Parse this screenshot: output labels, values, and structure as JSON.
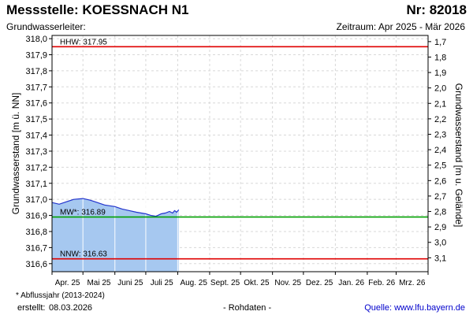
{
  "header": {
    "title": "Messstelle: KOESSNACH N1",
    "number": "Nr: 82018",
    "subtitle": "Grundwasserleiter:",
    "period": "Zeitraum: Apr 2025 - Mär 2026"
  },
  "footer": {
    "footnote": "* Abflussjahr (2013-2024)",
    "created_label": "erstellt:",
    "created_date": "08.03.2026",
    "rawdata": "- Rohdaten -",
    "source": "Quelle: www.lfu.bayern.de"
  },
  "colors": {
    "hhw": "#e00000",
    "nnw": "#e00000",
    "mw": "#00a000",
    "series_line": "#2233cc",
    "series_fill": "#a6c8f0",
    "grid": "#d8d8d8"
  },
  "chart_data": {
    "type": "area",
    "ylabel": "Grundwasserstand [m ü. NN]",
    "y2label": "Grundwasserstand [m u. Gelände]",
    "ylim": [
      316.55,
      318.02
    ],
    "y2lim": [
      3.19,
      1.66
    ],
    "grid": true,
    "yticks": [
      "316,6",
      "316,7",
      "316,8",
      "316,9",
      "317,0",
      "317,1",
      "317,2",
      "317,3",
      "317,4",
      "317,5",
      "317,6",
      "317,7",
      "317,8",
      "317,9",
      "318,0"
    ],
    "y2ticks": [
      "1,7",
      "1,8",
      "1,9",
      "2,0",
      "2,1",
      "2,2",
      "2,3",
      "2,4",
      "2,5",
      "2,6",
      "2,7",
      "2,8",
      "2,9",
      "3,0",
      "3,1"
    ],
    "xtick_labels": [
      "Apr. 25",
      "Mai 25",
      "Juni 25",
      "Juli 25",
      "Aug. 25",
      "Sept. 25",
      "Okt. 25",
      "Nov. 25",
      "Dez. 25",
      "Jan. 26",
      "Feb. 26",
      "Mrz. 26"
    ],
    "x_start": "2025-04-01",
    "x_end": "2026-03-31",
    "reference_lines": [
      {
        "label": "HHW: 317.95",
        "value": 317.95,
        "kind": "hhw"
      },
      {
        "label": "MW*: 316.89",
        "value": 316.89,
        "kind": "mw"
      },
      {
        "label": "NNW: 316.63",
        "value": 316.63,
        "kind": "nnw"
      }
    ],
    "series": [
      {
        "x": [
          "2025-04-01",
          "2025-04-08",
          "2025-04-15",
          "2025-04-22",
          "2025-05-01",
          "2025-05-08",
          "2025-05-15",
          "2025-05-22",
          "2025-06-01",
          "2025-06-08",
          "2025-06-15",
          "2025-06-22",
          "2025-07-01",
          "2025-07-06",
          "2025-07-11",
          "2025-07-16",
          "2025-07-20",
          "2025-07-24",
          "2025-07-27",
          "2025-07-29",
          "2025-07-31",
          "2025-08-02"
        ],
        "y": [
          316.98,
          316.97,
          316.985,
          317.0,
          317.005,
          316.995,
          316.98,
          316.965,
          316.955,
          316.94,
          316.93,
          316.92,
          316.91,
          316.9,
          316.895,
          316.91,
          316.915,
          316.925,
          316.915,
          316.93,
          316.92,
          316.935
        ]
      }
    ]
  }
}
